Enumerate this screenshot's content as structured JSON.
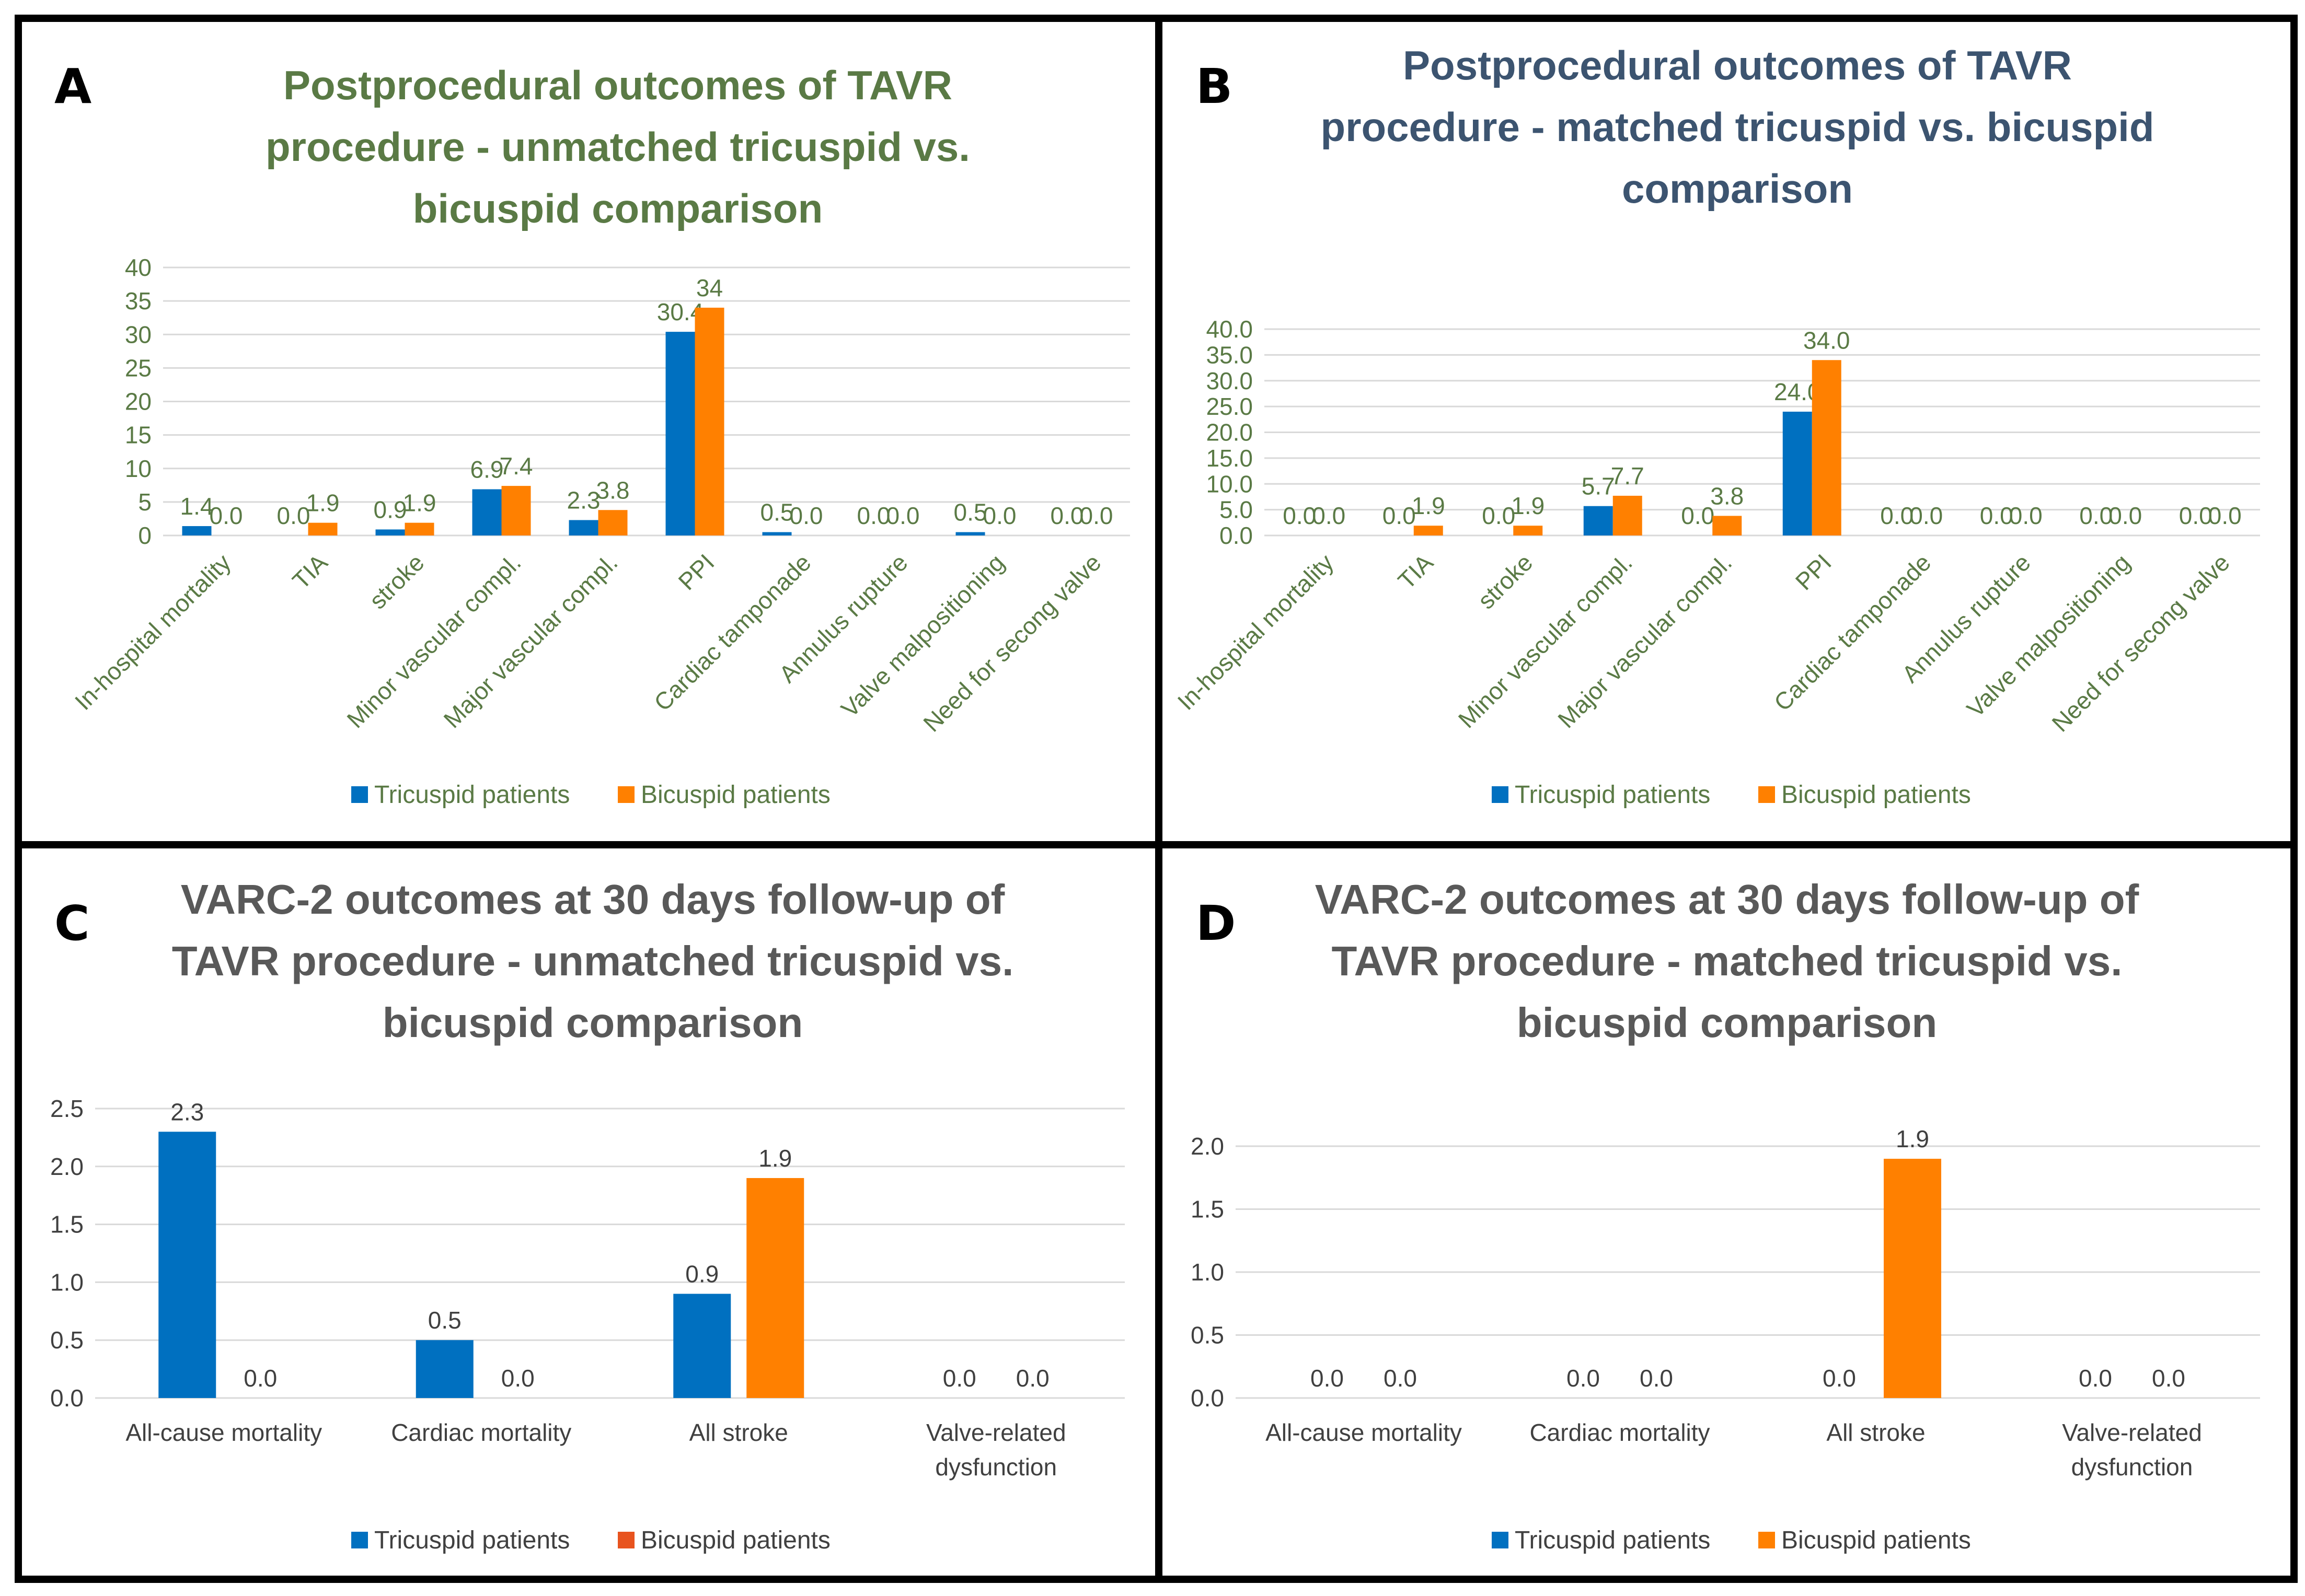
{
  "panels": [
    {
      "letter": "A"
    },
    {
      "letter": "B"
    },
    {
      "letter": "C"
    },
    {
      "letter": "D"
    }
  ],
  "colors": {
    "tricuspid": "#0070C0",
    "bicuspid": "#FF8000",
    "bicuspid_legend_c": "#E8531E",
    "title_a": "#5A7A45",
    "title_b": "#3C5470",
    "title_cd": "#595959",
    "text_ab": "#5A7A45",
    "text_cd": "#404040",
    "grid": "#D9D9D9"
  },
  "chart_data": [
    {
      "type": "bar",
      "title": "Postprocedural outcomes of TAVR procedure - unmatched tricuspid vs. bicuspid comparison",
      "title_lines": [
        "Postprocedural outcomes of TAVR",
        "procedure - unmatched tricuspid vs.",
        "bicuspid comparison"
      ],
      "categories": [
        "In-hospital mortality",
        "TIA",
        "stroke",
        "Minor vascular compl.",
        "Major vascular compl.",
        "PPI",
        "Cardiac tamponade",
        "Annulus rupture",
        "Valve malpositioning",
        "Need for secong valve"
      ],
      "series": [
        {
          "name": "Tricuspid patients",
          "values": [
            1.4,
            0.0,
            0.9,
            6.9,
            2.3,
            30.4,
            0.5,
            0.0,
            0.5,
            0.0
          ],
          "labels": [
            "1.4",
            "0.0",
            "0.9",
            "6.9",
            "2.3",
            "30.4",
            "0.5",
            "0.0",
            "0.5",
            "0.0"
          ]
        },
        {
          "name": "Bicuspid patients",
          "values": [
            0.0,
            1.9,
            1.9,
            7.4,
            3.8,
            34.0,
            0.0,
            0.0,
            0.0,
            0.0
          ],
          "labels": [
            "0.0",
            "1.9",
            "1.9",
            "7.4",
            "3.8",
            "34",
            "0.0",
            "0.0",
            "0.0",
            "0.0"
          ]
        }
      ],
      "yticks": [
        "0",
        "5",
        "10",
        "15",
        "20",
        "25",
        "30",
        "35",
        "40"
      ],
      "ylim": [
        0,
        40
      ],
      "xlabel": "",
      "ylabel": "",
      "legend": "bottom"
    },
    {
      "type": "bar",
      "title": "Postprocedural outcomes of TAVR procedure - matched tricuspid vs. bicuspid comparison",
      "title_lines": [
        "Postprocedural outcomes of TAVR",
        "procedure - matched tricuspid vs. bicuspid",
        "comparison"
      ],
      "categories": [
        "In-hospital mortality",
        "TIA",
        "stroke",
        "Minor vascular compl.",
        "Major vascular compl.",
        "PPI",
        "Cardiac tamponade",
        "Annulus rupture",
        "Valve malpositioning",
        "Need for secong valve"
      ],
      "series": [
        {
          "name": "Tricuspid patients",
          "values": [
            0.0,
            0.0,
            0.0,
            5.7,
            0.0,
            24.0,
            0.0,
            0.0,
            0.0,
            0.0
          ],
          "labels": [
            "0.0",
            "0.0",
            "0.0",
            "5.7",
            "0.0",
            "24.0",
            "0.0",
            "0.0",
            "0.0",
            "0.0"
          ]
        },
        {
          "name": "Bicuspid patients",
          "values": [
            0.0,
            1.9,
            1.9,
            7.7,
            3.8,
            34.0,
            0.0,
            0.0,
            0.0,
            0.0
          ],
          "labels": [
            "0.0",
            "1.9",
            "1.9",
            "7.7",
            "3.8",
            "34.0",
            "0.0",
            "0.0",
            "0.0",
            "0.0"
          ]
        }
      ],
      "yticks": [
        "0.0",
        "5.0",
        "10.0",
        "15.0",
        "20.0",
        "25.0",
        "30.0",
        "35.0",
        "40.0"
      ],
      "ylim": [
        0,
        40
      ],
      "xlabel": "",
      "ylabel": "",
      "legend": "bottom"
    },
    {
      "type": "bar",
      "title": "VARC-2 outcomes at 30 days follow-up of TAVR procedure - unmatched tricuspid vs. bicuspid comparison",
      "title_lines": [
        "VARC-2 outcomes at 30 days follow-up of",
        "TAVR procedure -  unmatched tricuspid vs.",
        "bicuspid comparison"
      ],
      "categories": [
        "All-cause mortality",
        "Cardiac mortality",
        "All stroke",
        "Valve-related dysfunction"
      ],
      "category_lines": [
        [
          "All-cause mortality"
        ],
        [
          "Cardiac mortality"
        ],
        [
          "All stroke"
        ],
        [
          "Valve-related",
          "dysfunction"
        ]
      ],
      "series": [
        {
          "name": "Tricuspid patients",
          "values": [
            2.3,
            0.5,
            0.9,
            0.0
          ],
          "labels": [
            "2.3",
            "0.5",
            "0.9",
            "0.0"
          ]
        },
        {
          "name": "Bicuspid patients",
          "values": [
            0.0,
            0.0,
            1.9,
            0.0
          ],
          "labels": [
            "0.0",
            "0.0",
            "1.9",
            "0.0"
          ]
        }
      ],
      "yticks": [
        "0.0",
        "0.5",
        "1.0",
        "1.5",
        "2.0",
        "2.5"
      ],
      "ylim": [
        0,
        2.5
      ],
      "xlabel": "",
      "ylabel": "",
      "legend": "bottom"
    },
    {
      "type": "bar",
      "title": "VARC-2 outcomes at 30 days follow-up of TAVR procedure - matched tricuspid vs. bicuspid comparison",
      "title_lines": [
        "VARC-2 outcomes at 30 days follow-up of",
        "TAVR procedure - matched tricuspid vs.",
        "bicuspid comparison"
      ],
      "categories": [
        "All-cause mortality",
        "Cardiac mortality",
        "All stroke",
        "Valve-related dysfunction"
      ],
      "category_lines": [
        [
          "All-cause mortality"
        ],
        [
          "Cardiac mortality"
        ],
        [
          "All stroke"
        ],
        [
          "Valve-related",
          "dysfunction"
        ]
      ],
      "series": [
        {
          "name": "Tricuspid patients",
          "values": [
            0.0,
            0.0,
            0.0,
            0.0
          ],
          "labels": [
            "0.0",
            "0.0",
            "0.0",
            "0.0"
          ]
        },
        {
          "name": "Bicuspid patients",
          "values": [
            0.0,
            0.0,
            1.9,
            0.0
          ],
          "labels": [
            "0.0",
            "0.0",
            "1.9",
            "0.0"
          ]
        }
      ],
      "yticks": [
        "0.0",
        "0.5",
        "1.0",
        "1.5",
        "2.0"
      ],
      "ylim": [
        0,
        2.0
      ],
      "xlabel": "",
      "ylabel": "",
      "legend": "bottom"
    }
  ]
}
